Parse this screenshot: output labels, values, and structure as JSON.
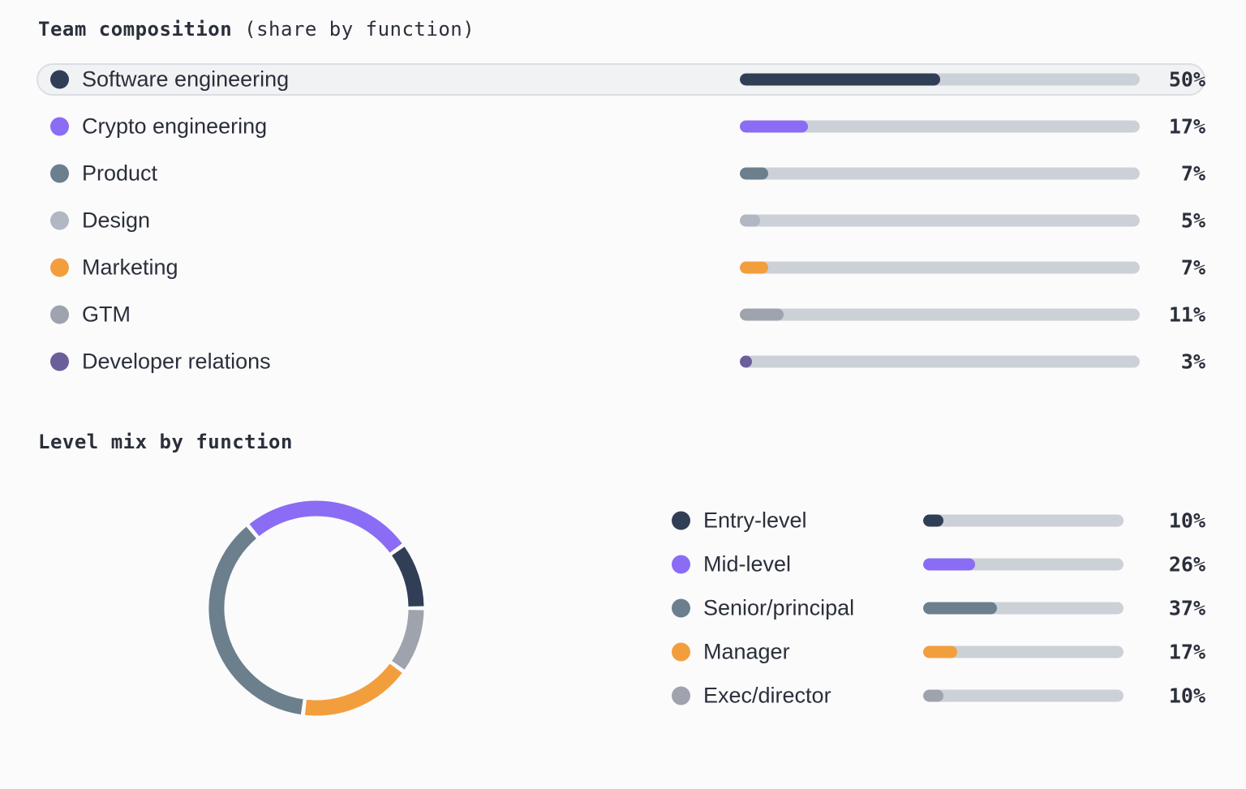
{
  "composition": {
    "title_bold": "Team composition",
    "title_rest": "(share by function)",
    "highlighted_index": 0,
    "items": [
      {
        "label": "Software engineering",
        "value": 50,
        "pct": "50%",
        "color": "#313f56"
      },
      {
        "label": "Crypto engineering",
        "value": 17,
        "pct": "17%",
        "color": "#8b6cf5"
      },
      {
        "label": "Product",
        "value": 7,
        "pct": "7%",
        "color": "#6b7f8d"
      },
      {
        "label": "Design",
        "value": 5,
        "pct": "5%",
        "color": "#b1b7c3"
      },
      {
        "label": "Marketing",
        "value": 7,
        "pct": "7%",
        "color": "#f39e3d"
      },
      {
        "label": "GTM",
        "value": 11,
        "pct": "11%",
        "color": "#9ea3ae"
      },
      {
        "label": "Developer relations",
        "value": 3,
        "pct": "3%",
        "color": "#6b5e9b"
      }
    ]
  },
  "level_mix": {
    "title": "Level mix by function",
    "items": [
      {
        "label": "Entry-level",
        "value": 10,
        "pct": "10%",
        "color": "#313f56"
      },
      {
        "label": "Mid-level",
        "value": 26,
        "pct": "26%",
        "color": "#8b6cf5"
      },
      {
        "label": "Senior/principal",
        "value": 37,
        "pct": "37%",
        "color": "#6b7f8d"
      },
      {
        "label": "Manager",
        "value": 17,
        "pct": "17%",
        "color": "#f39e3d"
      },
      {
        "label": "Exec/director",
        "value": 10,
        "pct": "10%",
        "color": "#9ea3ae"
      }
    ]
  },
  "chart_data": [
    {
      "type": "bar",
      "title": "Team composition (share by function)",
      "categories": [
        "Software engineering",
        "Crypto engineering",
        "Product",
        "Design",
        "Marketing",
        "GTM",
        "Developer relations"
      ],
      "values": [
        50,
        17,
        7,
        5,
        7,
        11,
        3
      ],
      "ylim": [
        0,
        100
      ]
    },
    {
      "type": "pie",
      "title": "Level mix by function",
      "categories": [
        "Entry-level",
        "Mid-level",
        "Senior/principal",
        "Manager",
        "Exec/director"
      ],
      "values": [
        10,
        26,
        37,
        17,
        10
      ]
    }
  ]
}
